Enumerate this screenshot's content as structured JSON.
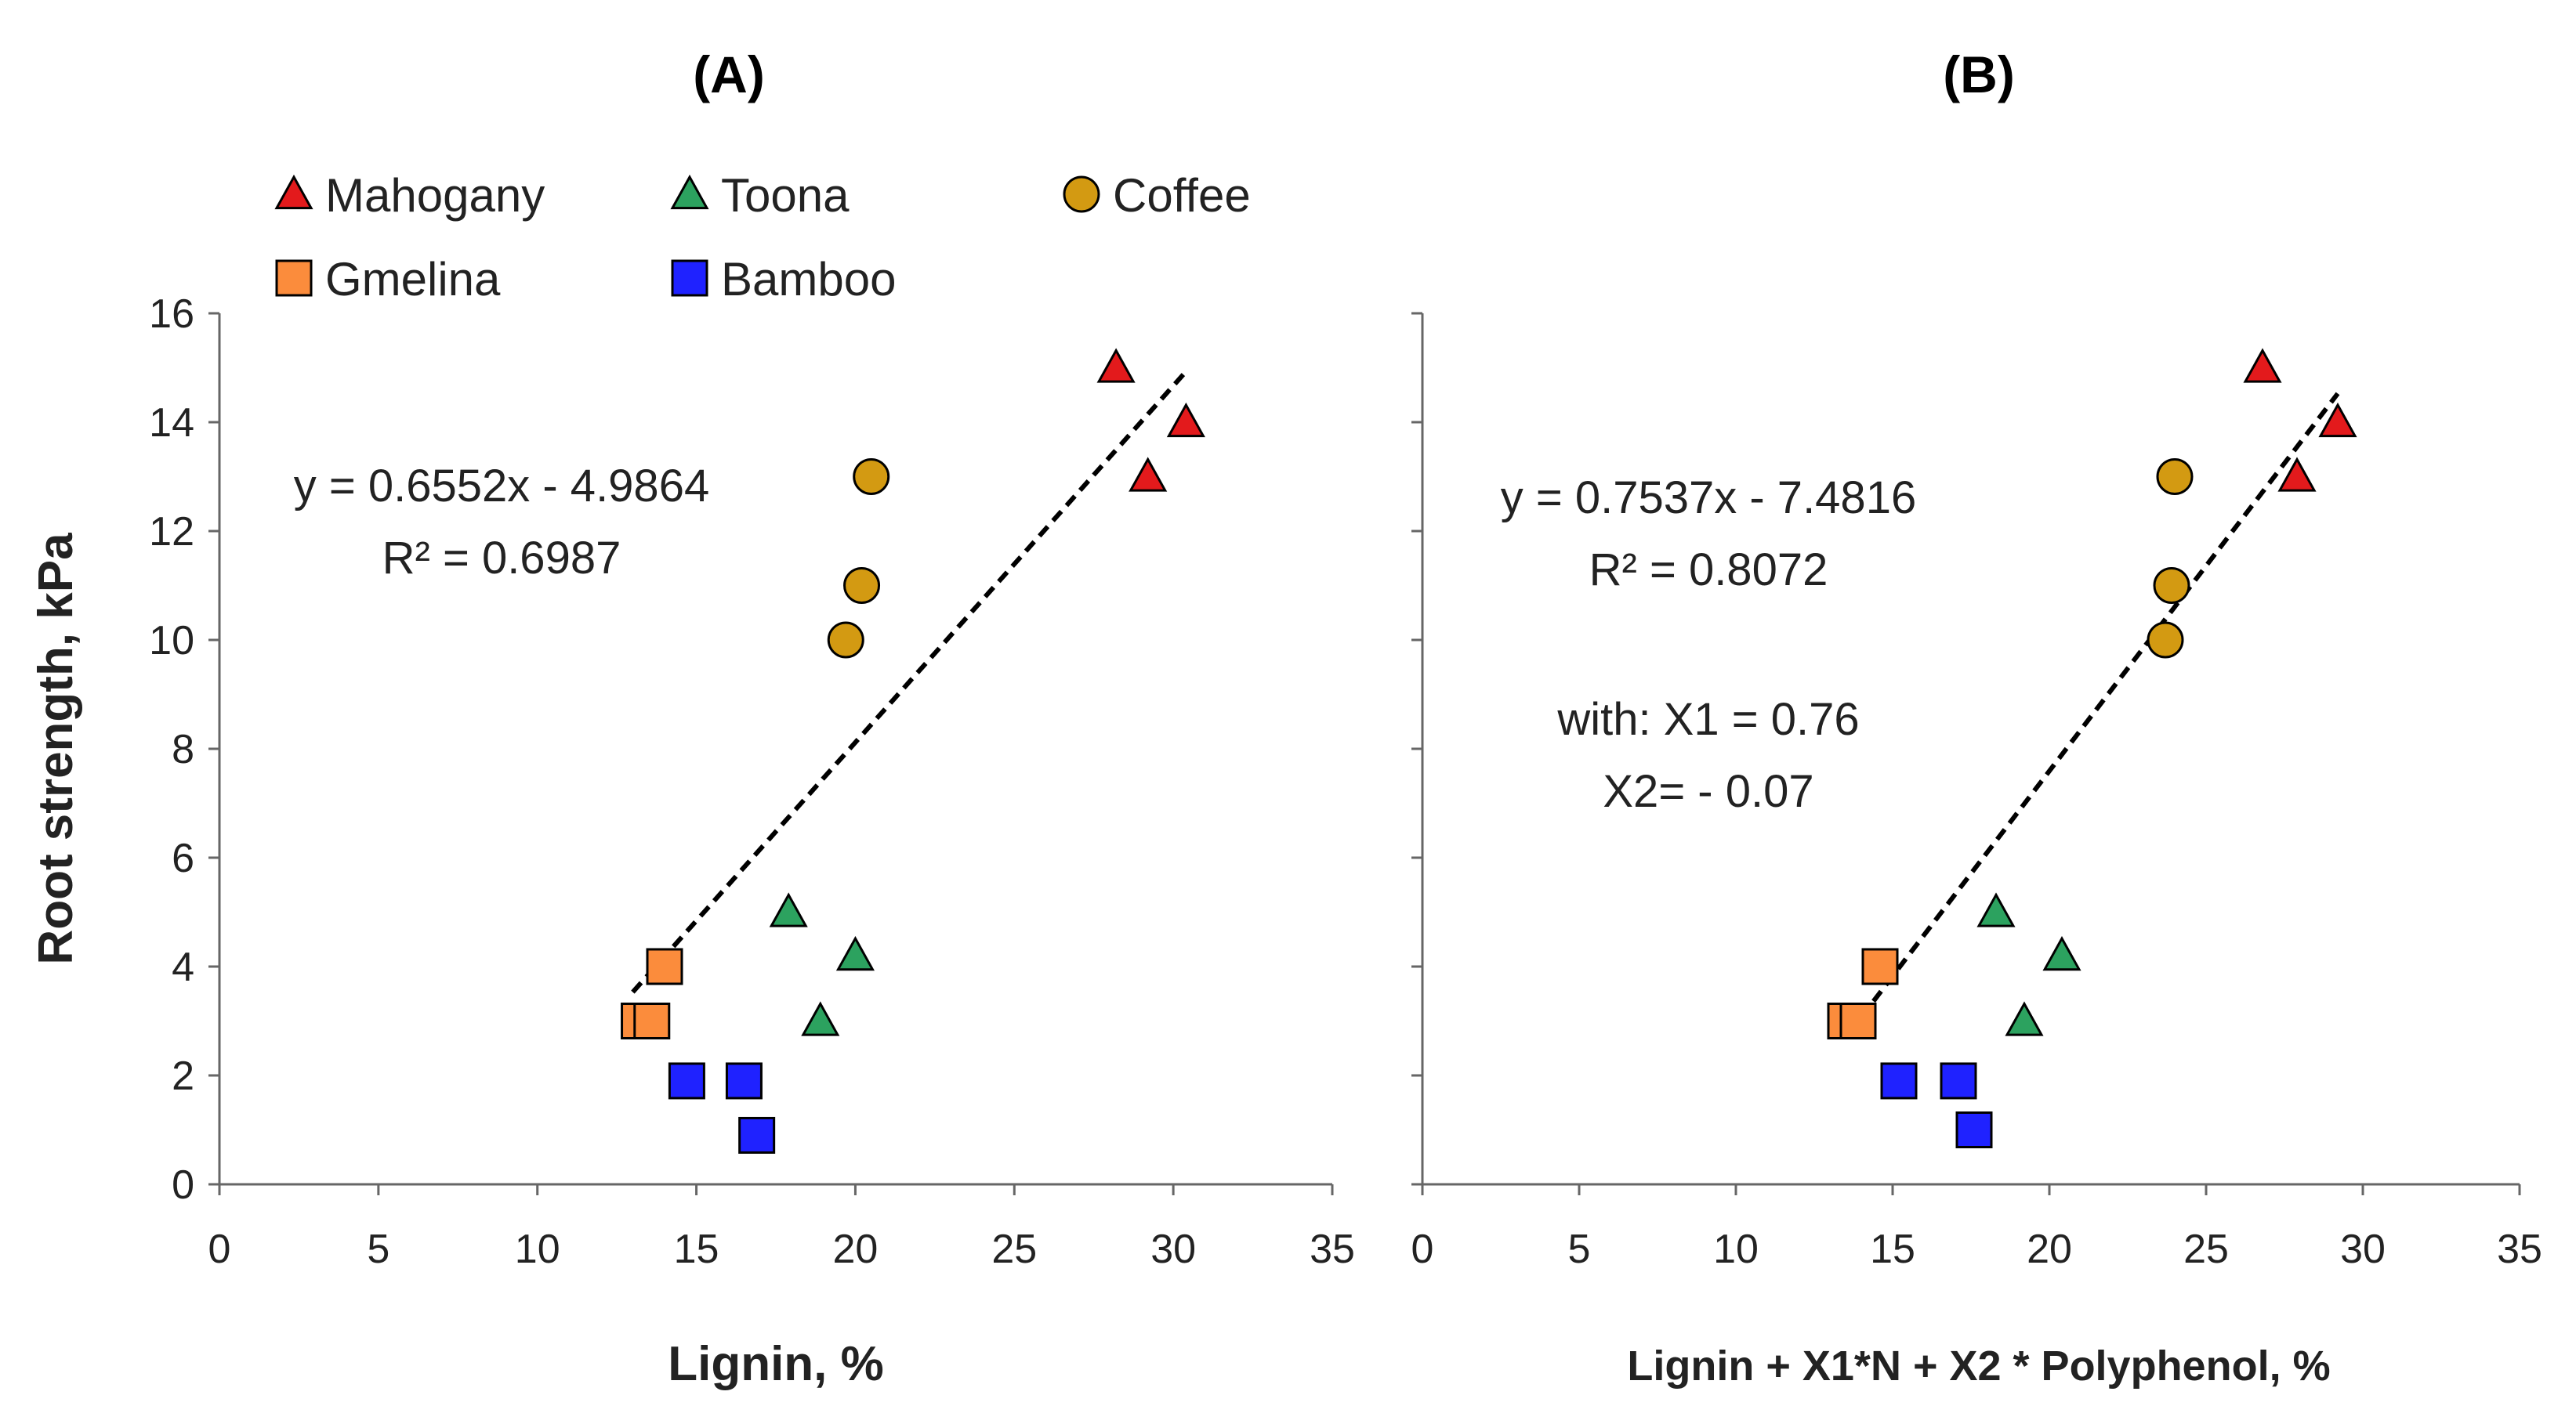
{
  "colors": {
    "Mahogany": "#e31a1c",
    "Toona": "#2ca25f",
    "Coffee": "#d39a12",
    "Gmelina": "#fb8c3c",
    "Bamboo": "#1f22ff"
  },
  "legend": [
    {
      "name": "Mahogany",
      "marker": "triangle"
    },
    {
      "name": "Toona",
      "marker": "triangle"
    },
    {
      "name": "Coffee",
      "marker": "circle"
    },
    {
      "name": "Gmelina",
      "marker": "square"
    },
    {
      "name": "Bamboo",
      "marker": "square"
    }
  ],
  "chart_data": [
    {
      "type": "scatter",
      "title": "(A)",
      "xlabel": "Lignin, %",
      "ylabel": "Root strength, kPa",
      "xlim": [
        0,
        35
      ],
      "ylim": [
        0,
        16
      ],
      "xticks": [
        "0",
        "5",
        "10",
        "15",
        "20",
        "25",
        "30",
        "35"
      ],
      "yticks": [
        "0",
        "2",
        "4",
        "6",
        "8",
        "10",
        "12",
        "14",
        "16"
      ],
      "series": [
        {
          "name": "Mahogany",
          "marker": "triangle",
          "points": [
            [
              28.2,
              15.0
            ],
            [
              30.4,
              14.0
            ],
            [
              29.2,
              13.0
            ]
          ]
        },
        {
          "name": "Toona",
          "marker": "triangle",
          "points": [
            [
              17.9,
              5.0
            ],
            [
              20.0,
              4.2
            ],
            [
              18.9,
              3.0
            ]
          ]
        },
        {
          "name": "Coffee",
          "marker": "circle",
          "points": [
            [
              20.5,
              13.0
            ],
            [
              20.2,
              11.0
            ],
            [
              19.7,
              10.0
            ]
          ]
        },
        {
          "name": "Gmelina",
          "marker": "square",
          "points": [
            [
              14.0,
              4.0
            ],
            [
              13.2,
              3.0
            ],
            [
              13.6,
              3.0
            ]
          ]
        },
        {
          "name": "Bamboo",
          "marker": "square",
          "points": [
            [
              14.7,
              1.9
            ],
            [
              16.5,
              1.9
            ],
            [
              16.9,
              0.9
            ]
          ]
        }
      ],
      "trendline": {
        "x": [
          13.0,
          30.4
        ],
        "slope": 0.6552,
        "intercept": -4.9864
      },
      "annotations": [
        "y = 0.6552x - 4.9864",
        "R² = 0.6987"
      ]
    },
    {
      "type": "scatter",
      "title": "(B)",
      "xlabel": "Lignin + X1*N + X2 * Polyphenol, %",
      "ylabel": "",
      "xlim": [
        0,
        35
      ],
      "ylim": [
        0,
        16
      ],
      "xticks": [
        "0",
        "5",
        "10",
        "15",
        "20",
        "25",
        "30",
        "35"
      ],
      "series": [
        {
          "name": "Mahogany",
          "marker": "triangle",
          "points": [
            [
              26.8,
              15.0
            ],
            [
              29.2,
              14.0
            ],
            [
              27.9,
              13.0
            ]
          ]
        },
        {
          "name": "Toona",
          "marker": "triangle",
          "points": [
            [
              18.3,
              5.0
            ],
            [
              20.4,
              4.2
            ],
            [
              19.2,
              3.0
            ]
          ]
        },
        {
          "name": "Coffee",
          "marker": "circle",
          "points": [
            [
              24.0,
              13.0
            ],
            [
              23.9,
              11.0
            ],
            [
              23.7,
              10.0
            ]
          ]
        },
        {
          "name": "Gmelina",
          "marker": "square",
          "points": [
            [
              14.6,
              4.0
            ],
            [
              13.5,
              3.0
            ],
            [
              13.9,
              3.0
            ]
          ]
        },
        {
          "name": "Bamboo",
          "marker": "square",
          "points": [
            [
              15.2,
              1.9
            ],
            [
              17.1,
              1.9
            ],
            [
              17.6,
              1.0
            ]
          ]
        }
      ],
      "trendline": {
        "x": [
          13.6,
          29.2
        ],
        "slope": 0.7537,
        "intercept": -7.4816
      },
      "annotations": [
        "y = 0.7537x - 7.4816",
        "R² = 0.8072",
        "with:  X1 = 0.76",
        "X2=  - 0.07"
      ]
    }
  ]
}
